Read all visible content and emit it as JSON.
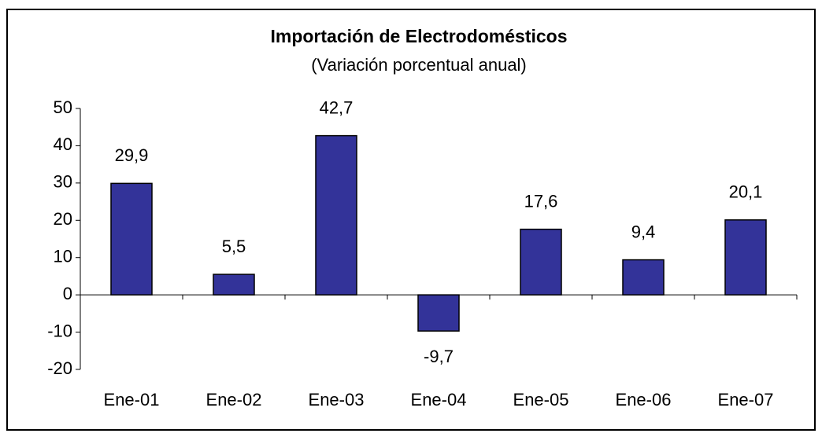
{
  "chart_data": {
    "type": "bar",
    "title": "Importación de Electrodomésticos",
    "subtitle": "(Variación porcentual anual)",
    "categories": [
      "Ene-01",
      "Ene-02",
      "Ene-03",
      "Ene-04",
      "Ene-05",
      "Ene-06",
      "Ene-07"
    ],
    "values": [
      29.9,
      5.5,
      42.7,
      -9.7,
      17.6,
      9.4,
      20.1
    ],
    "value_labels": [
      "29,9",
      "5,5",
      "42,7",
      "-9,7",
      "17,6",
      "9,4",
      "20,1"
    ],
    "color": "#333399",
    "ylim": [
      -20,
      50
    ],
    "yticks": [
      -20,
      -10,
      0,
      10,
      20,
      30,
      40,
      50
    ],
    "grid": false
  }
}
